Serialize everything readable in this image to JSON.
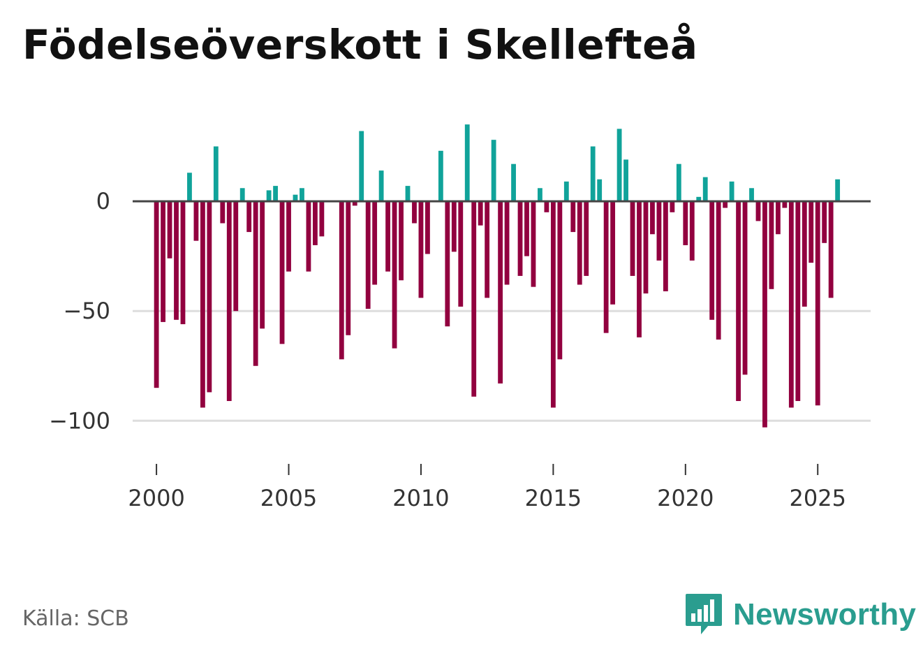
{
  "title": "Födelseöverskott i Skellefteå",
  "source": "Källa: SCB",
  "brand": {
    "name": "Newsworthy",
    "icon": "newsworthy-logo-icon",
    "color": "#2a9d8f"
  },
  "colors": {
    "positive": "#10a39a",
    "negative": "#92003f",
    "zero_line": "#444444",
    "grid": "#dddddd"
  },
  "chart_data": {
    "type": "bar",
    "title": "Födelseöverskott i Skellefteå",
    "xlabel": "",
    "ylabel": "",
    "period": "quarterly",
    "start_year": 2000,
    "ylim": [
      -112,
      36
    ],
    "xlim": [
      1999.1,
      2027.0
    ],
    "yticks": [
      0,
      -50,
      -100
    ],
    "ytick_labels": [
      "0",
      "−50",
      "−100"
    ],
    "xticks": [
      2000,
      2005,
      2010,
      2015,
      2020,
      2025
    ],
    "xtick_labels": [
      "2000",
      "2005",
      "2010",
      "2015",
      "2020",
      "2025"
    ],
    "grid": true,
    "values": [
      -85,
      -55,
      -26,
      -54,
      -56,
      13,
      -18,
      -94,
      -87,
      25,
      -10,
      -91,
      -50,
      6,
      -14,
      -75,
      -58,
      5,
      7,
      -65,
      -32,
      3,
      6,
      -32,
      -20,
      -16,
      0,
      0,
      -72,
      -61,
      -2,
      32,
      -49,
      -38,
      14,
      -32,
      -67,
      -36,
      7,
      -10,
      -44,
      -24,
      0,
      23,
      -57,
      -23,
      -48,
      35,
      -89,
      -11,
      -44,
      28,
      -83,
      -38,
      17,
      -34,
      -25,
      -39,
      6,
      -5,
      -94,
      -72,
      9,
      -14,
      -38,
      -34,
      25,
      10,
      -60,
      -47,
      33,
      19,
      -34,
      -62,
      -42,
      -15,
      -27,
      -41,
      -5,
      17,
      -20,
      -27,
      2,
      11,
      -54,
      -63,
      -3,
      9,
      -91,
      -79,
      6,
      -9,
      -103,
      -40,
      -15,
      -3,
      -94,
      -91,
      -48,
      -28,
      -93,
      -19,
      -44,
      10
    ]
  }
}
